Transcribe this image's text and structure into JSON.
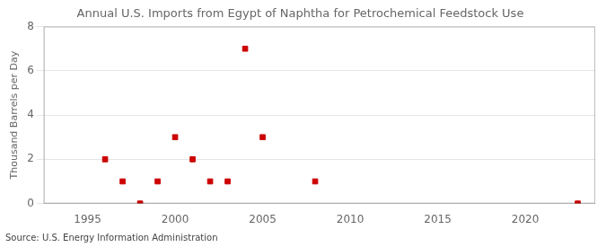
{
  "chart_data": {
    "type": "scatter",
    "title": "Annual U.S. Imports from Egypt of Naphtha for Petrochemical Feedstock Use",
    "ylabel": "Thousand Barrels per Day",
    "annotations": [
      "Source: U.S. Energy Information Administration"
    ],
    "x": [
      1996,
      1997,
      1998,
      1999,
      2000,
      2001,
      2002,
      2003,
      2004,
      2005,
      2008,
      2023
    ],
    "values": [
      2,
      1,
      0,
      1,
      3,
      2,
      1,
      1,
      7,
      3,
      1,
      0
    ],
    "color": "#cc0000",
    "marker": "square",
    "xlim": [
      1992.5,
      2024
    ],
    "xticks": [
      1995,
      2000,
      2005,
      2010,
      2015,
      2020
    ],
    "ylim": [
      0,
      8
    ],
    "yticks": [
      0,
      2,
      4,
      6,
      8
    ],
    "grid": true
  }
}
